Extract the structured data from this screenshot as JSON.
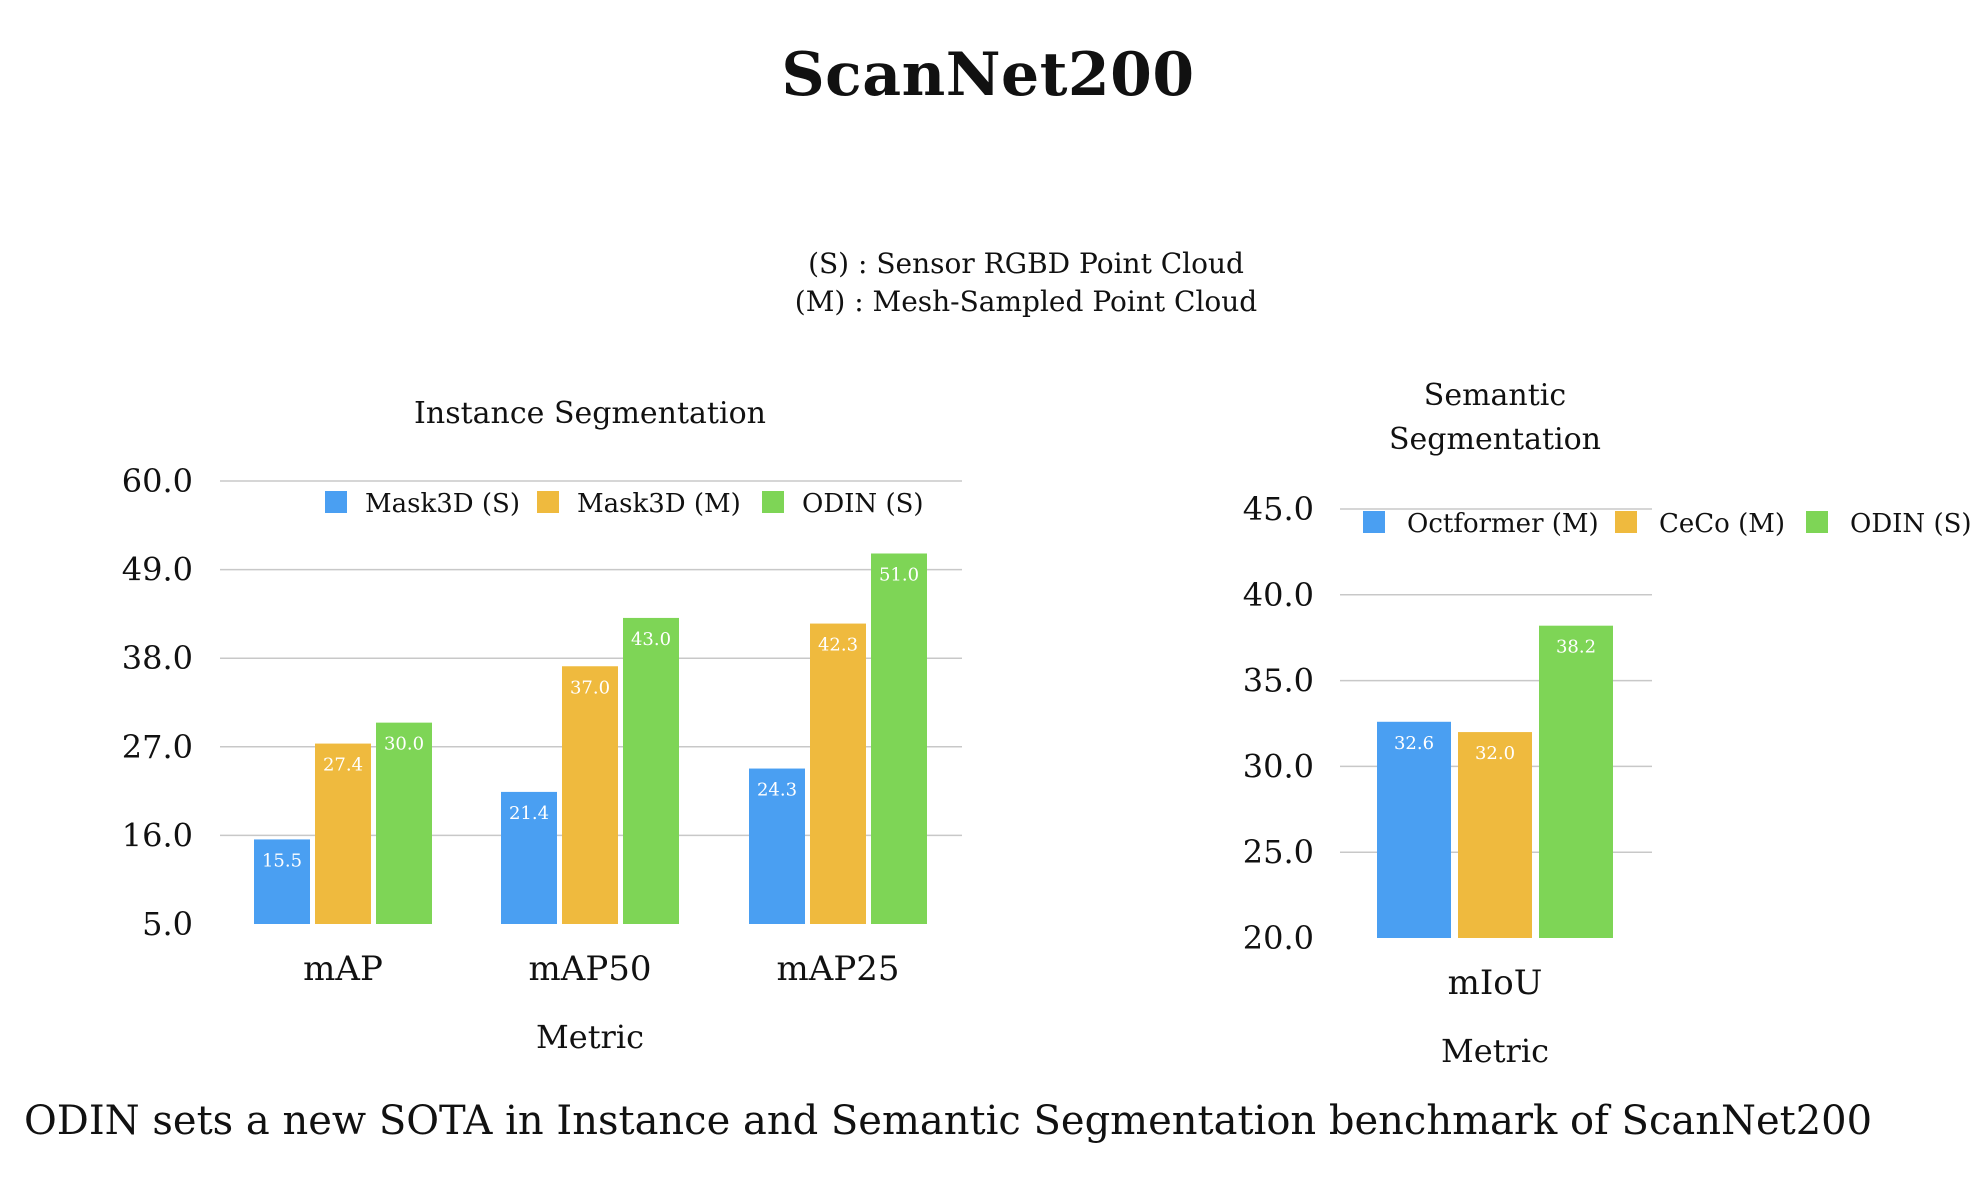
{
  "title": "ScanNet200",
  "notes": [
    "(S) : Sensor RGBD Point Cloud",
    "(M) : Mesh-Sampled Point Cloud"
  ],
  "caption": "ODIN sets a new SOTA in Instance and Semantic Segmentation benchmark of ScanNet200",
  "colors": {
    "blue": "#4a9ff2",
    "orange": "#efba3e",
    "green": "#7ed556",
    "grid": "#c8c8c8"
  },
  "chart_data": [
    {
      "type": "bar",
      "title": "Instance Segmentation",
      "xlabel": "Metric",
      "ylabel": "",
      "categories": [
        "mAP",
        "mAP50",
        "mAP25"
      ],
      "yticks": [
        "5.0",
        "16.0",
        "27.0",
        "38.0",
        "49.0",
        "60.0"
      ],
      "ylim": [
        5,
        60
      ],
      "grid": true,
      "legend": "top",
      "series": [
        {
          "name": "Mask3D (S)",
          "color": "#4a9ff2",
          "values": [
            15.5,
            21.4,
            24.3
          ],
          "labels": [
            "15.5",
            "21.4",
            "24.3"
          ]
        },
        {
          "name": "Mask3D (M)",
          "color": "#efba3e",
          "values": [
            27.4,
            37.0,
            42.3
          ],
          "labels": [
            "27.4",
            "37.0",
            "42.3"
          ]
        },
        {
          "name": "ODIN (S)",
          "color": "#7ed556",
          "values": [
            30.0,
            43.0,
            51.0
          ],
          "labels": [
            "30.0",
            "43.0",
            "51.0"
          ]
        }
      ]
    },
    {
      "type": "bar",
      "title": "Semantic Segmentation",
      "xlabel": "Metric",
      "ylabel": "",
      "categories": [
        "mIoU"
      ],
      "yticks": [
        "20.0",
        "25.0",
        "30.0",
        "35.0",
        "40.0",
        "45.0"
      ],
      "ylim": [
        20,
        45
      ],
      "grid": true,
      "legend": "top",
      "series": [
        {
          "name": "Octformer (M)",
          "color": "#4a9ff2",
          "values": [
            32.6
          ],
          "labels": [
            "32.6"
          ]
        },
        {
          "name": "CeCo (M)",
          "color": "#efba3e",
          "values": [
            32.0
          ],
          "labels": [
            "32.0"
          ]
        },
        {
          "name": "ODIN (S)",
          "color": "#7ed556",
          "values": [
            38.2
          ],
          "labels": [
            "38.2"
          ]
        }
      ]
    }
  ]
}
